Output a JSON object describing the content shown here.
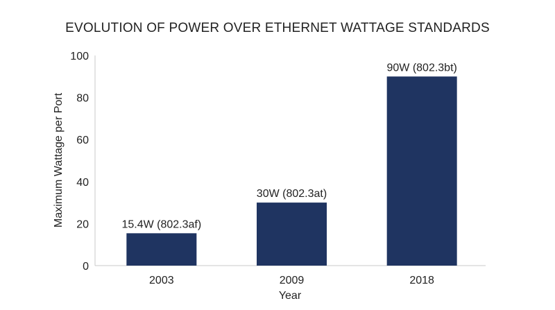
{
  "chart_data": {
    "type": "bar",
    "title": "EVOLUTION OF POWER OVER ETHERNET WATTAGE STANDARDS",
    "xlabel": "Year",
    "ylabel": "Maximum Wattage per Port",
    "categories": [
      "2003",
      "2009",
      "2018"
    ],
    "values": [
      15.4,
      30,
      90
    ],
    "data_labels": [
      "15.4W (802.3af)",
      "30W (802.3at)",
      "90W (802.3bt)"
    ],
    "ylim": [
      0,
      100
    ],
    "yticks": [
      0,
      20,
      40,
      60,
      80,
      100
    ],
    "grid": false,
    "legend": "none",
    "bar_color": "#1f3461"
  }
}
